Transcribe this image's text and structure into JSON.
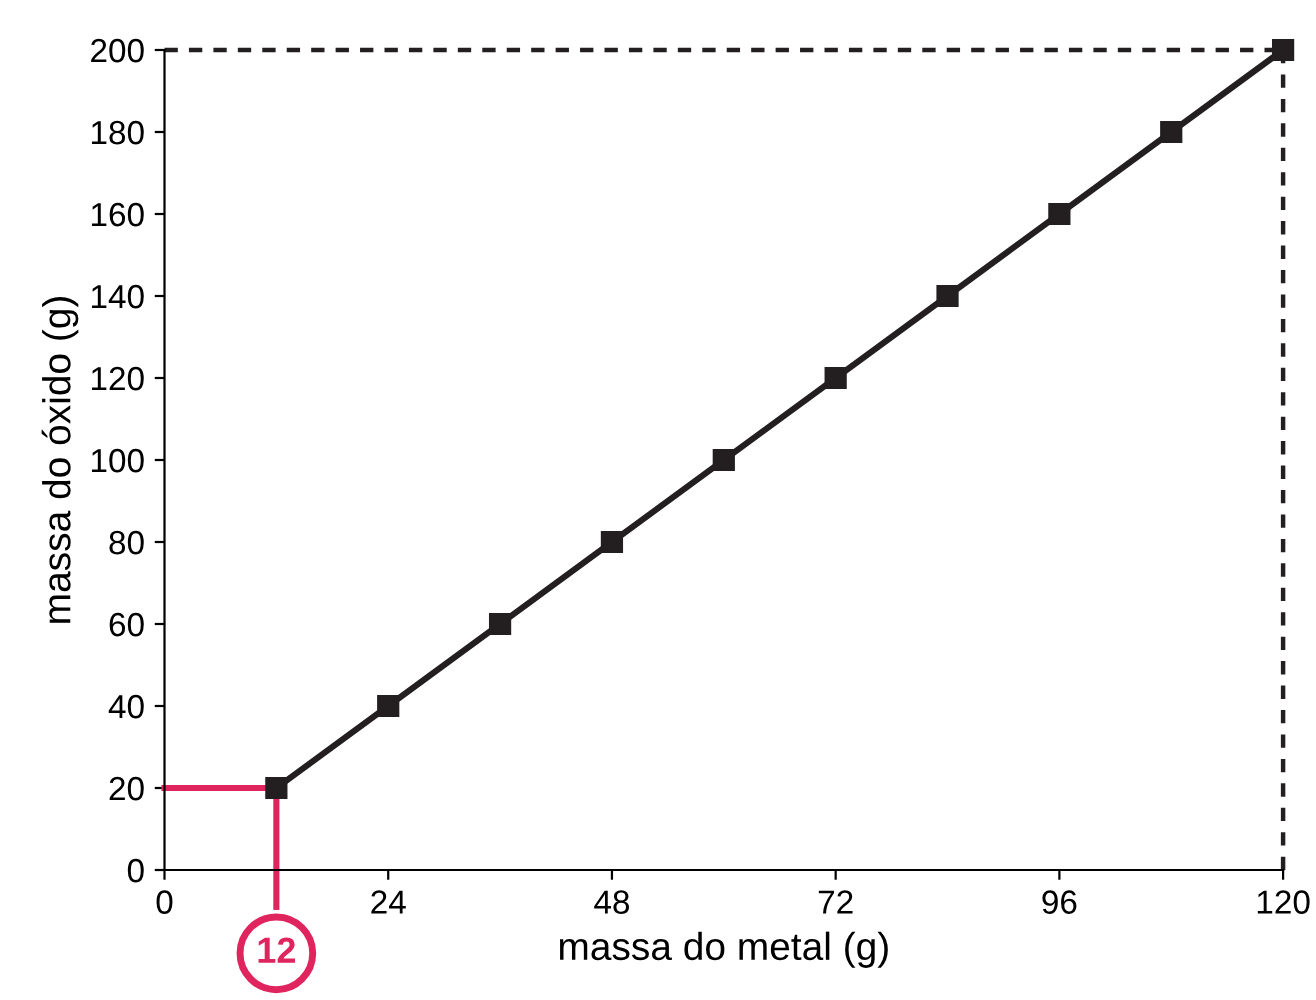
{
  "chart_data": {
    "type": "line",
    "xlabel": "massa do metal (g)",
    "ylabel": "massa do óxido (g)",
    "x": [
      12,
      24,
      36,
      48,
      60,
      72,
      84,
      96,
      108,
      120
    ],
    "series": [
      {
        "color": "#231f20",
        "values": [
          20,
          40,
          60,
          80,
          100,
          120,
          140,
          160,
          180,
          200
        ]
      }
    ],
    "marker": "square",
    "line_style": "solid",
    "xlim": [
      0,
      120
    ],
    "ylim": [
      0,
      200
    ],
    "xticks": [
      0,
      24,
      48,
      72,
      96,
      120
    ],
    "yticks": [
      0,
      20,
      40,
      60,
      80,
      100,
      120,
      140,
      160,
      180,
      200
    ],
    "ref_lines": [
      {
        "axis": "y",
        "value": 20,
        "color": "#e0245e",
        "line_style": "solid"
      },
      {
        "axis": "x",
        "value": 12,
        "color": "#e0245e",
        "line_style": "solid"
      },
      {
        "axis": "y",
        "value": 200,
        "color": "#231f20",
        "line_style": "dashed"
      },
      {
        "axis": "x",
        "value": 120,
        "color": "#231f20",
        "line_style": "dashed"
      }
    ],
    "annotations": [
      {
        "text": "12",
        "x": 12,
        "y": 0
      }
    ],
    "grid": false
  }
}
